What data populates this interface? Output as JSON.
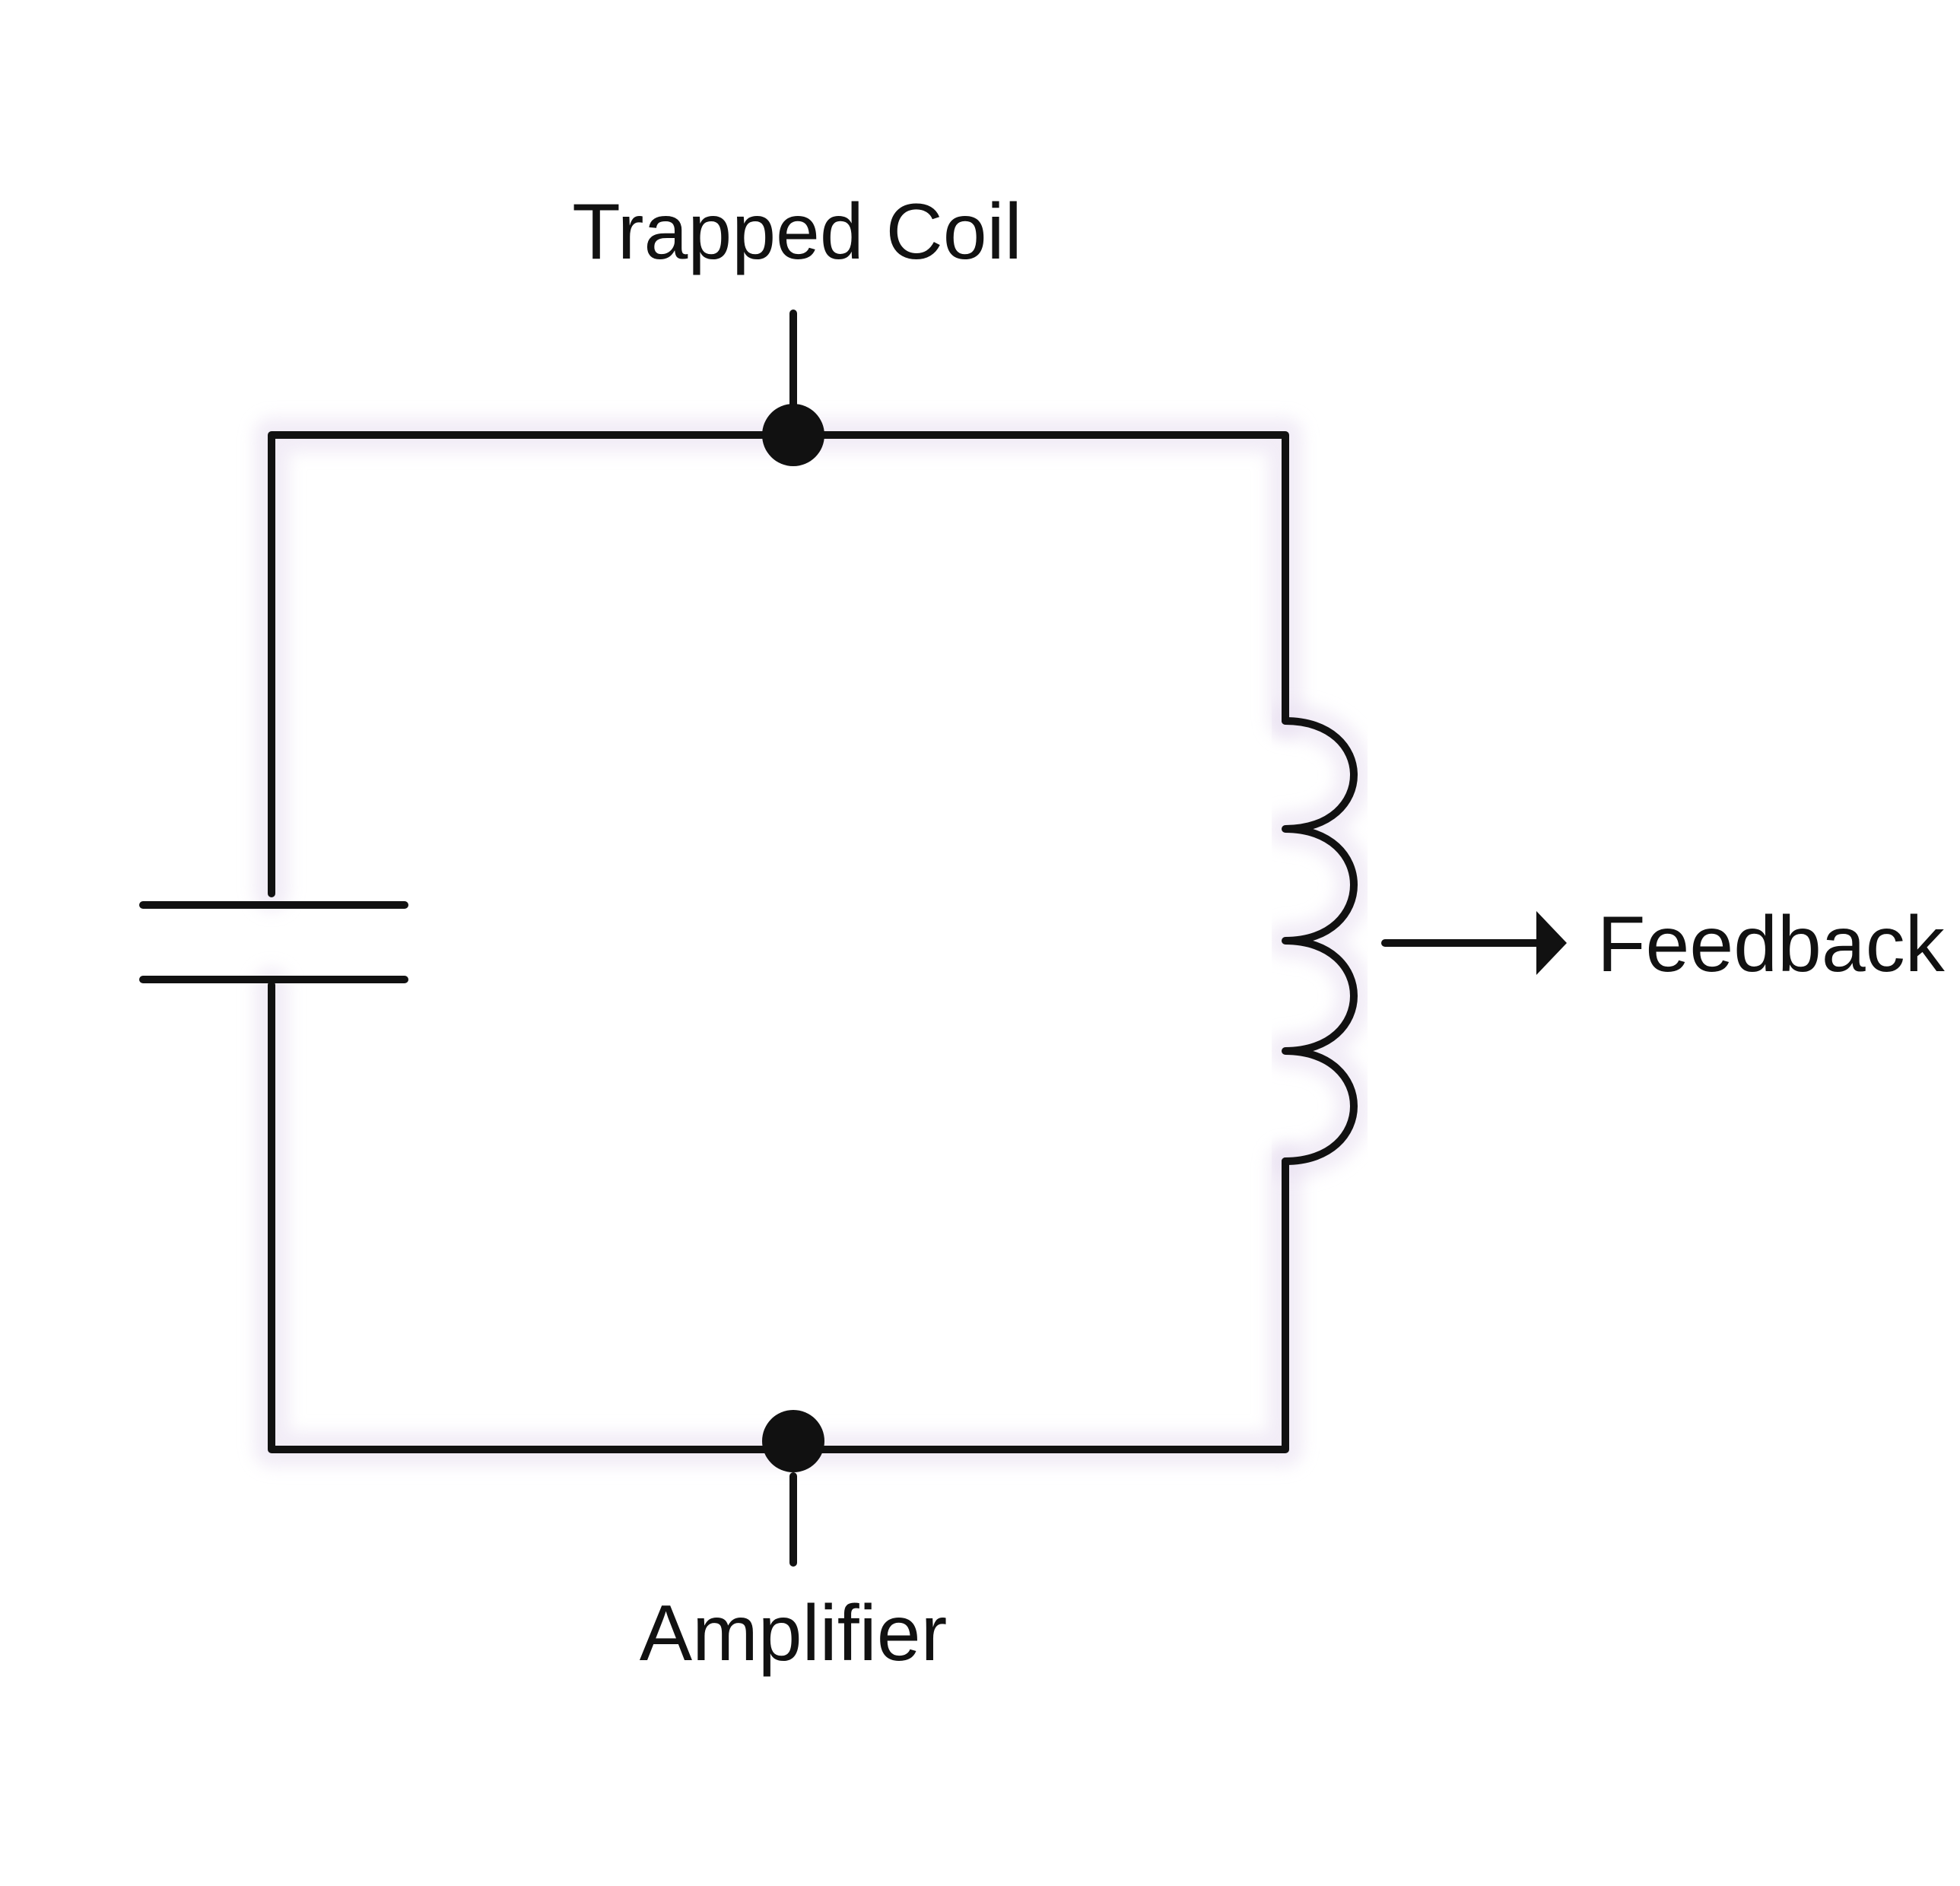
{
  "labels": {
    "top": "Trapped Coil",
    "bottom": "Amplifier",
    "right": "Feedback"
  },
  "components": {
    "capacitor": "capacitor-symbol",
    "inductor": "inductor-coil-symbol",
    "nodes": [
      "top-junction",
      "bottom-junction"
    ],
    "arrow": "feedback-arrow-icon"
  },
  "colors": {
    "line": "#111111",
    "glow": "#e7def0",
    "background": "#ffffff"
  }
}
